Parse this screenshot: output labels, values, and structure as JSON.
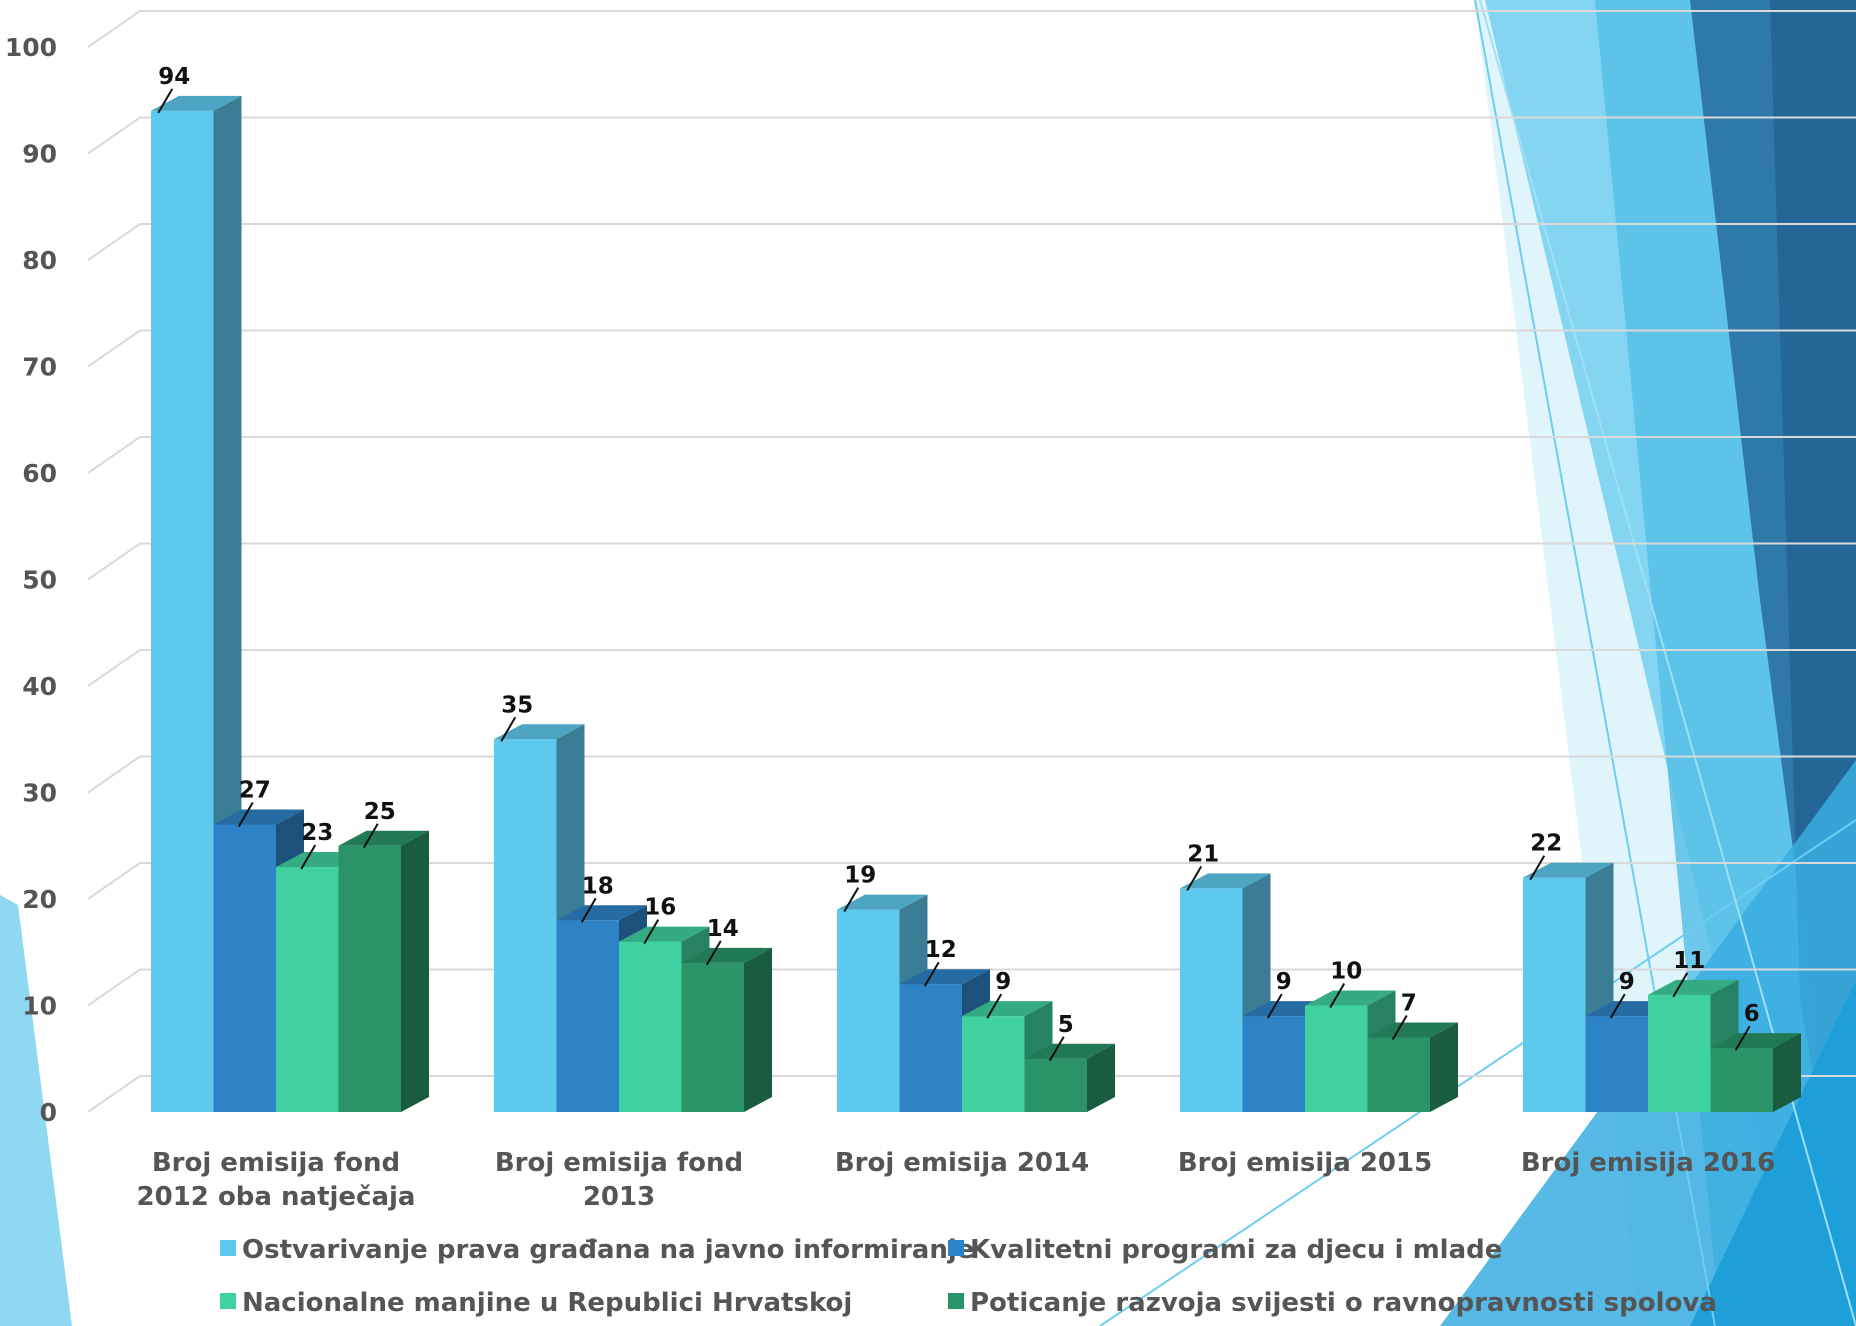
{
  "chart_data": {
    "type": "bar",
    "subtype": "3d-clustered-column",
    "categories": [
      [
        "Broj emisija fond",
        "2012 oba natječaja"
      ],
      [
        "Broj emisija fond",
        "2013"
      ],
      [
        "Broj  emisija 2014"
      ],
      [
        "Broj  emisija 2015"
      ],
      [
        "Broj  emisija 2016"
      ]
    ],
    "series": [
      {
        "name": "Ostvarivanje prava građana na javno informiranje",
        "values": [
          94,
          35,
          19,
          21,
          22
        ],
        "color": "#5ec9ee"
      },
      {
        "name": "Kvalitetni programi za djecu i mlade",
        "values": [
          27,
          18,
          12,
          9,
          9
        ],
        "color": "#2e82c6"
      },
      {
        "name": "Nacionalne manjine u Republici Hrvatskoj",
        "values": [
          23,
          16,
          9,
          10,
          11
        ],
        "color": "#3fd1a0"
      },
      {
        "name": "Poticanje razvoja svijesti o ravnopravnosti spolova",
        "values": [
          25,
          14,
          5,
          7,
          6
        ],
        "color": "#2a9468"
      }
    ],
    "ylim": [
      0,
      100
    ],
    "yticks": [
      0,
      10,
      20,
      30,
      40,
      50,
      60,
      70,
      80,
      90,
      100
    ],
    "title": "",
    "xlabel": "",
    "ylabel": "",
    "grid": true,
    "legend_position": "bottom"
  }
}
